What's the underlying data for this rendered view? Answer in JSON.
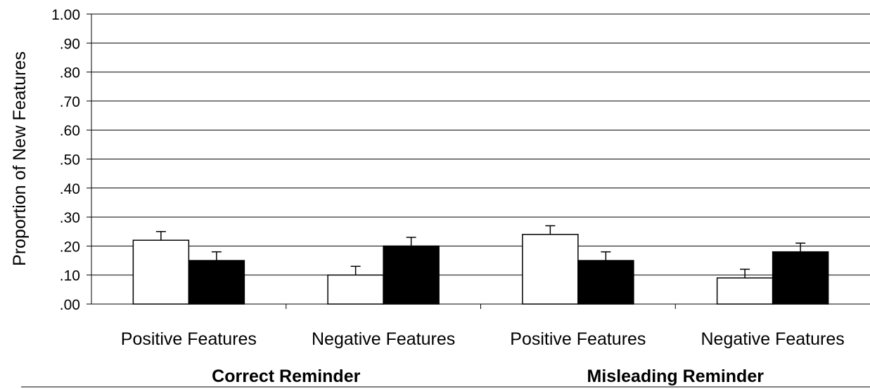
{
  "chart_data": {
    "type": "bar",
    "title": "",
    "ylabel": "Proportion of New Features",
    "xlabel": "",
    "ylim": [
      0,
      1.0
    ],
    "yticks": [
      0.0,
      0.1,
      0.2,
      0.3,
      0.4,
      0.5,
      0.6,
      0.7,
      0.8,
      0.9,
      1.0
    ],
    "ytick_labels": [
      ".00",
      ".10",
      ".20",
      ".30",
      ".40",
      ".50",
      ".60",
      ".70",
      ".80",
      ".90",
      "1.00"
    ],
    "grid": true,
    "legend": "none",
    "categories": [
      "Positive Features",
      "Negative Features",
      "Positive Features",
      "Negative Features"
    ],
    "groups": [
      {
        "label": "Correct Reminder",
        "categories": [
          0,
          1
        ]
      },
      {
        "label": "Misleading Reminder",
        "categories": [
          2,
          3
        ]
      }
    ],
    "series": [
      {
        "color": "#ffffff",
        "values": [
          0.22,
          0.1,
          0.24,
          0.09
        ],
        "errors": [
          0.03,
          0.03,
          0.03,
          0.03
        ]
      },
      {
        "color": "#000000",
        "values": [
          0.15,
          0.2,
          0.15,
          0.18
        ],
        "errors": [
          0.03,
          0.03,
          0.03,
          0.03
        ]
      }
    ]
  }
}
